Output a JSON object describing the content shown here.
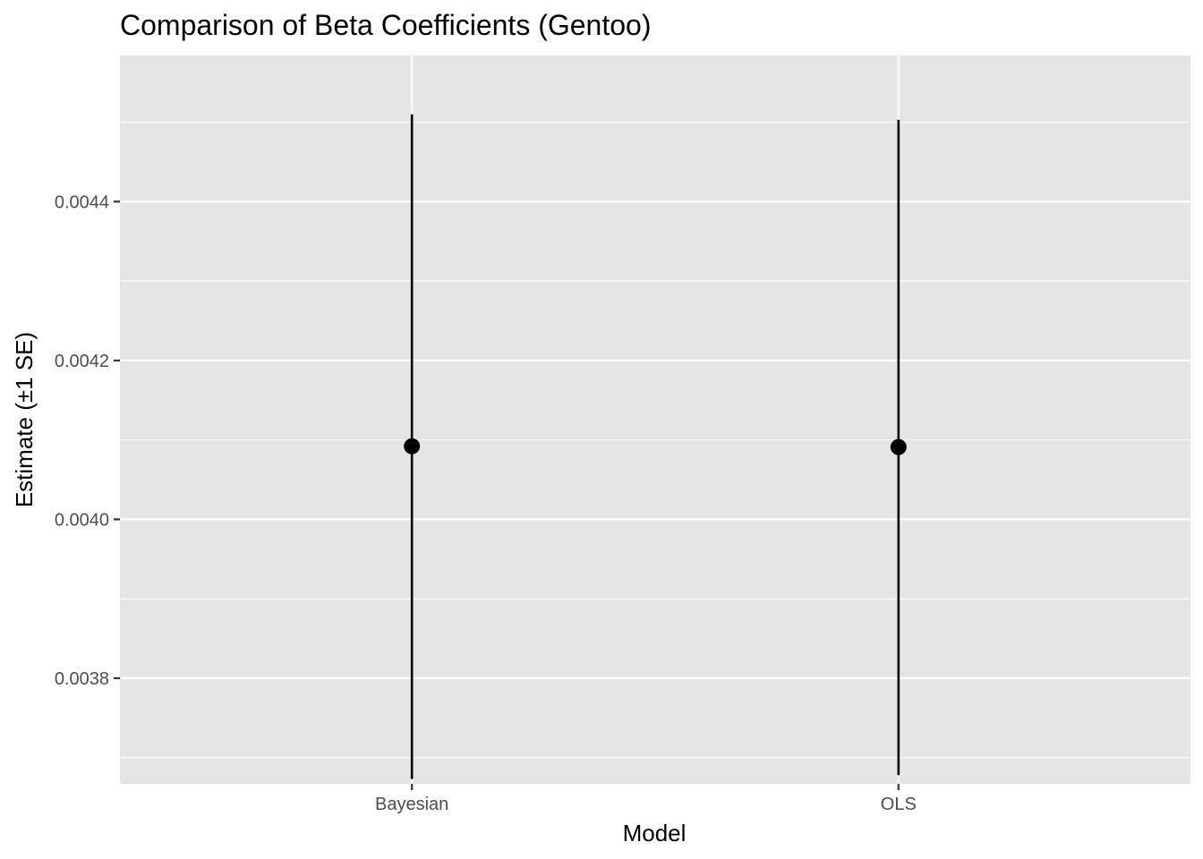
{
  "chart_data": {
    "type": "scatter",
    "title": "Comparison of Beta Coefficients (Gentoo)",
    "xlabel": "Model",
    "ylabel": "Estimate (±1 SE)",
    "categories": [
      "Bayesian",
      "OLS"
    ],
    "estimates": [
      0.004092,
      0.004091
    ],
    "lower": [
      0.003673,
      0.003678
    ],
    "upper": [
      0.00451,
      0.004503
    ],
    "ylim": [
      0.003667,
      0.004584
    ],
    "yticks": [
      0.0038,
      0.004,
      0.0042,
      0.0044
    ],
    "ytick_labels": [
      "0.0038",
      "0.0040",
      "0.0042",
      "0.0044"
    ],
    "grid": true,
    "legend": "none",
    "colors": {
      "panel": "#e5e5e5",
      "grid": "#ffffff",
      "marks": "#000000",
      "tick_text": "#4d4d4d",
      "tick_mark": "#333333"
    }
  }
}
